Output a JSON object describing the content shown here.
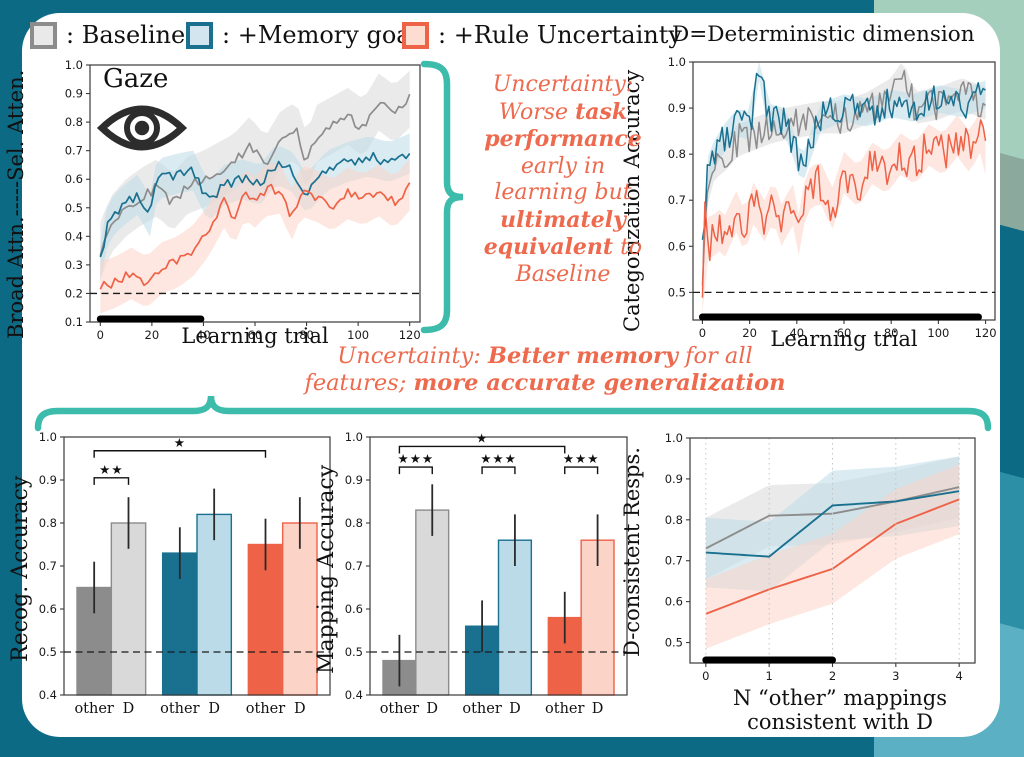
{
  "palette": {
    "baseline": "#8c8c8c",
    "baseline_light": "#d9d9d9",
    "baseline_fill": "#e9e9e9",
    "memory": "#19708f",
    "memory_light": "#bcdbe8",
    "memory_fill": "#d3e5ee",
    "uncertainty": "#ee6247",
    "uncertainty_light": "#fbd3c7",
    "uncertainty_fill": "#fddcd1",
    "annotation": "#ed6a4e",
    "brace": "#3dbcab",
    "frame": "#0d6a84",
    "stripes": [
      "#a5cfbd",
      "#8ba99c",
      "#0d6a84",
      "#2d8fa5",
      "#5cb0c4"
    ]
  },
  "legend": {
    "items": [
      {
        "label": ": Baseline",
        "key": "baseline"
      },
      {
        "label": ": +Memory goal",
        "key": "memory"
      },
      {
        "label": ": +Rule Uncertainty",
        "key": "uncertainty"
      }
    ]
  },
  "headers": {
    "right_chart_title": "D=Deterministic dimension"
  },
  "annotations": {
    "top": {
      "lines": [
        [
          {
            "t": "Uncertainty:"
          }
        ],
        [
          {
            "t": "Worse "
          },
          {
            "t": "task",
            "b": true
          }
        ],
        [
          {
            "t": "performance",
            "b": true
          }
        ],
        [
          {
            "t": "early in"
          }
        ],
        [
          {
            "t": "learning but"
          }
        ],
        [
          {
            "t": "ultimately",
            "b": true
          }
        ],
        [
          {
            "t": "equivalent",
            "b": true
          },
          {
            "t": " to"
          }
        ],
        [
          {
            "t": "Baseline"
          }
        ]
      ]
    },
    "bottom": {
      "lines": [
        [
          {
            "t": "Uncertainty: "
          },
          {
            "t": "Better memory",
            "b": true
          },
          {
            "t": " for all"
          }
        ],
        [
          {
            "t": "features; "
          },
          {
            "t": "more accurate generalization",
            "b": true
          }
        ]
      ]
    }
  },
  "chart_data": [
    {
      "name": "gaze-attention-learning",
      "type": "line",
      "title": "Gaze",
      "xlabel": "Learning trial",
      "ylabel": "Broad Attn.-----Sel. Atten.",
      "xlim": [
        -4,
        124
      ],
      "ylim": [
        0.1,
        1.0
      ],
      "xticks": [
        0,
        20,
        40,
        60,
        80,
        100,
        120
      ],
      "yticks": [
        0.1,
        0.2,
        0.3,
        0.4,
        0.5,
        0.6,
        0.7,
        0.8,
        0.9,
        1.0
      ],
      "hline": 0.2,
      "sig_span": [
        0,
        39
      ],
      "samples": 85,
      "linewidth": 1.7,
      "series": [
        {
          "name": "Baseline",
          "color": "baseline",
          "band": 0.1,
          "band_color": "baseline_light",
          "noise": 0.018,
          "ax": [
            0,
            4,
            10,
            16,
            22,
            28,
            34,
            40,
            46,
            52,
            58,
            64,
            70,
            76,
            80,
            84,
            90,
            96,
            102,
            108,
            114,
            120
          ],
          "ay": [
            0.35,
            0.44,
            0.5,
            0.54,
            0.57,
            0.52,
            0.58,
            0.6,
            0.63,
            0.66,
            0.72,
            0.65,
            0.74,
            0.77,
            0.66,
            0.76,
            0.79,
            0.82,
            0.78,
            0.87,
            0.83,
            0.88
          ]
        },
        {
          "name": "+Memory goal",
          "color": "memory",
          "band": 0.07,
          "band_color": "memory_light",
          "noise": 0.018,
          "ax": [
            0,
            3,
            8,
            15,
            19,
            22,
            30,
            36,
            42,
            48,
            55,
            62,
            68,
            74,
            80,
            88,
            96,
            104,
            112,
            120
          ],
          "ay": [
            0.31,
            0.45,
            0.5,
            0.55,
            0.46,
            0.6,
            0.62,
            0.63,
            0.52,
            0.58,
            0.6,
            0.58,
            0.65,
            0.63,
            0.55,
            0.63,
            0.66,
            0.68,
            0.66,
            0.69
          ]
        },
        {
          "name": "+Rule Uncertainty",
          "color": "uncertainty",
          "band": 0.09,
          "band_color": "uncertainty_light",
          "noise": 0.018,
          "ax": [
            0,
            6,
            12,
            18,
            24,
            30,
            36,
            42,
            48,
            52,
            56,
            60,
            64,
            70,
            74,
            78,
            84,
            90,
            96,
            102,
            108,
            114,
            120
          ],
          "ay": [
            0.22,
            0.24,
            0.27,
            0.24,
            0.29,
            0.31,
            0.35,
            0.42,
            0.52,
            0.46,
            0.55,
            0.52,
            0.56,
            0.57,
            0.47,
            0.56,
            0.54,
            0.51,
            0.55,
            0.53,
            0.56,
            0.52,
            0.58
          ]
        }
      ]
    },
    {
      "name": "categorization-accuracy-learning",
      "type": "line",
      "title": "D=Deterministic dimension",
      "xlabel": "Learning trial",
      "ylabel": "Categorization Accuracy",
      "xlim": [
        -4,
        124
      ],
      "ylim": [
        0.44,
        1.0
      ],
      "xticks": [
        0,
        20,
        40,
        60,
        80,
        100,
        120
      ],
      "yticks": [
        0.5,
        0.6,
        0.7,
        0.8,
        0.9,
        1.0
      ],
      "hline": 0.5,
      "sig_span": [
        0,
        117
      ],
      "samples": 115,
      "linewidth": 1.5,
      "series": [
        {
          "name": "Baseline",
          "color": "baseline",
          "band": 0.035,
          "band_color": "baseline_light",
          "noise": 0.035,
          "ax": [
            0,
            2,
            5,
            10,
            15,
            20,
            30,
            40,
            50,
            60,
            70,
            80,
            85,
            90,
            100,
            110,
            120
          ],
          "ay": [
            0.55,
            0.72,
            0.78,
            0.8,
            0.83,
            0.84,
            0.86,
            0.87,
            0.88,
            0.88,
            0.9,
            0.93,
            0.97,
            0.9,
            0.91,
            0.93,
            0.91
          ]
        },
        {
          "name": "+Memory goal",
          "color": "memory",
          "band": 0.03,
          "band_color": "memory_light",
          "noise": 0.035,
          "ax": [
            0,
            2,
            5,
            10,
            15,
            20,
            24,
            28,
            35,
            40,
            42,
            50,
            60,
            70,
            80,
            90,
            100,
            110,
            120
          ],
          "ay": [
            0.58,
            0.76,
            0.8,
            0.84,
            0.87,
            0.86,
            0.99,
            0.88,
            0.87,
            0.8,
            0.76,
            0.88,
            0.9,
            0.89,
            0.91,
            0.9,
            0.92,
            0.91,
            0.93
          ]
        },
        {
          "name": "+Rule Uncertainty",
          "color": "uncertainty",
          "band": 0.045,
          "band_color": "uncertainty_light",
          "noise": 0.04,
          "ax": [
            0,
            1,
            3,
            6,
            10,
            14,
            18,
            22,
            26,
            30,
            34,
            38,
            41,
            44,
            50,
            55,
            60,
            66,
            72,
            78,
            84,
            90,
            96,
            102,
            108,
            114,
            117,
            120
          ],
          "ay": [
            0.5,
            0.66,
            0.6,
            0.64,
            0.62,
            0.68,
            0.63,
            0.7,
            0.65,
            0.7,
            0.64,
            0.7,
            0.62,
            0.72,
            0.74,
            0.68,
            0.76,
            0.73,
            0.78,
            0.76,
            0.8,
            0.78,
            0.82,
            0.8,
            0.84,
            0.8,
            0.86,
            0.8
          ]
        }
      ]
    },
    {
      "name": "recognition-accuracy-bars",
      "type": "bar",
      "ylabel": "Recog. Accuracy",
      "ylim": [
        0.4,
        1.0
      ],
      "yticks": [
        0.4,
        0.5,
        0.6,
        0.7,
        0.8,
        0.9,
        1.0
      ],
      "hline": 0.5,
      "categories": [
        "other",
        "D",
        "other",
        "D",
        "other",
        "D"
      ],
      "values": [
        0.65,
        0.8,
        0.73,
        0.82,
        0.75,
        0.8
      ],
      "errors": [
        0.06,
        0.06,
        0.06,
        0.06,
        0.06,
        0.06
      ],
      "bar_colors": [
        "baseline",
        "baseline_light",
        "memory",
        "memory_light",
        "uncertainty",
        "uncertainty_light"
      ],
      "edge_colors": [
        "baseline",
        "baseline",
        "memory",
        "memory",
        "uncertainty",
        "uncertainty"
      ],
      "brackets": [
        {
          "from": 0,
          "to": 1,
          "label": "**",
          "y": 0.905
        },
        {
          "from": 0,
          "to": 4,
          "label": "*",
          "y": 0.968
        }
      ]
    },
    {
      "name": "mapping-accuracy-bars",
      "type": "bar",
      "ylabel": "Mapping Accuracy",
      "ylim": [
        0.4,
        1.0
      ],
      "yticks": [
        0.4,
        0.5,
        0.6,
        0.7,
        0.8,
        0.9,
        1.0
      ],
      "hline": 0.5,
      "categories": [
        "other",
        "D",
        "other",
        "D",
        "other",
        "D"
      ],
      "values": [
        0.48,
        0.83,
        0.56,
        0.76,
        0.58,
        0.76
      ],
      "errors": [
        0.06,
        0.06,
        0.06,
        0.06,
        0.06,
        0.06
      ],
      "bar_colors": [
        "baseline",
        "baseline_light",
        "memory",
        "memory_light",
        "uncertainty",
        "uncertainty_light"
      ],
      "edge_colors": [
        "baseline",
        "baseline",
        "memory",
        "memory",
        "uncertainty",
        "uncertainty"
      ],
      "brackets": [
        {
          "from": 0,
          "to": 1,
          "label": "***",
          "y": 0.93
        },
        {
          "from": 2,
          "to": 3,
          "label": "***",
          "y": 0.93
        },
        {
          "from": 4,
          "to": 5,
          "label": "***",
          "y": 0.93
        },
        {
          "from": 0,
          "to": 4,
          "label": "*",
          "y": 0.978
        }
      ]
    },
    {
      "name": "d-consistent-responses",
      "type": "line",
      "xlabel_lines": [
        "N “other” mappings",
        "consistent with D"
      ],
      "ylabel": "D-consistent Resps.",
      "xlim": [
        -0.25,
        4.25
      ],
      "ylim": [
        0.45,
        1.0
      ],
      "xticks": [
        0,
        1,
        2,
        3,
        4
      ],
      "yticks": [
        0.5,
        0.6,
        0.7,
        0.8,
        0.9,
        1.0
      ],
      "grid": "x-dotted",
      "sig_span": [
        0,
        2
      ],
      "samples": 60,
      "linewidth": 1.9,
      "series": [
        {
          "name": "Baseline",
          "color": "baseline",
          "band": 0.075,
          "band_color": "baseline_light",
          "noise": 0,
          "ax": [
            0,
            1,
            2,
            3,
            4
          ],
          "ay": [
            0.73,
            0.81,
            0.815,
            0.845,
            0.88
          ]
        },
        {
          "name": "+Memory goal",
          "color": "memory",
          "band": 0.085,
          "band_color": "memory_light",
          "noise": 0,
          "ax": [
            0,
            1,
            2,
            3,
            4
          ],
          "ay": [
            0.72,
            0.71,
            0.835,
            0.845,
            0.87
          ]
        },
        {
          "name": "+Rule Uncertainty",
          "color": "uncertainty",
          "band": 0.085,
          "band_color": "uncertainty_light",
          "noise": 0,
          "ax": [
            0,
            1,
            2,
            3,
            4
          ],
          "ay": [
            0.57,
            0.63,
            0.68,
            0.79,
            0.85
          ]
        }
      ]
    }
  ]
}
